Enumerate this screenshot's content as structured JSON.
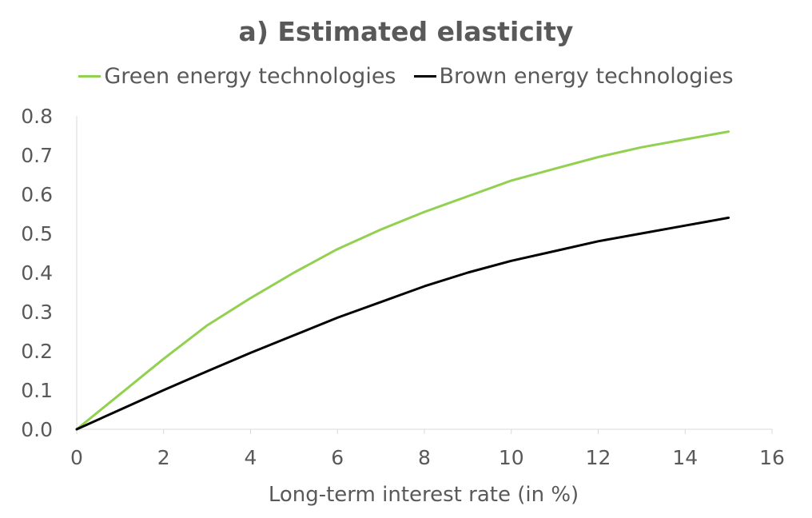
{
  "chart_data": {
    "type": "line",
    "title": "a) Estimated elasticity",
    "xlabel": "Long-term interest rate (in %)",
    "ylabel": "",
    "xlim": [
      0,
      16
    ],
    "ylim": [
      0,
      0.8
    ],
    "xticks": [
      0,
      2,
      4,
      6,
      8,
      10,
      12,
      14,
      16
    ],
    "xtick_labels": [
      "0",
      "2",
      "4",
      "6",
      "8",
      "10",
      "12",
      "14",
      "16"
    ],
    "yticks": [
      0,
      0.1,
      0.2,
      0.3,
      0.4,
      0.5,
      0.6,
      0.7,
      0.8
    ],
    "ytick_labels": [
      "0.0",
      "0.1",
      "0.2",
      "0.3",
      "0.4",
      "0.5",
      "0.6",
      "0.7",
      "0.8"
    ],
    "grid": false,
    "legend_position": "top",
    "series": [
      {
        "name": "Green energy technologies",
        "color": "#92d050",
        "x": [
          0,
          1,
          2,
          3,
          4,
          5,
          6,
          7,
          8,
          9,
          10,
          11,
          12,
          13,
          14,
          15
        ],
        "y": [
          0.0,
          0.09,
          0.18,
          0.265,
          0.335,
          0.4,
          0.46,
          0.51,
          0.555,
          0.595,
          0.635,
          0.665,
          0.695,
          0.72,
          0.74,
          0.76
        ]
      },
      {
        "name": "Brown energy technologies",
        "color": "#000000",
        "x": [
          0,
          1,
          2,
          3,
          4,
          5,
          6,
          7,
          8,
          9,
          10,
          11,
          12,
          13,
          14,
          15
        ],
        "y": [
          0.0,
          0.05,
          0.1,
          0.148,
          0.195,
          0.24,
          0.285,
          0.325,
          0.365,
          0.4,
          0.43,
          0.455,
          0.48,
          0.5,
          0.52,
          0.54
        ]
      }
    ]
  }
}
